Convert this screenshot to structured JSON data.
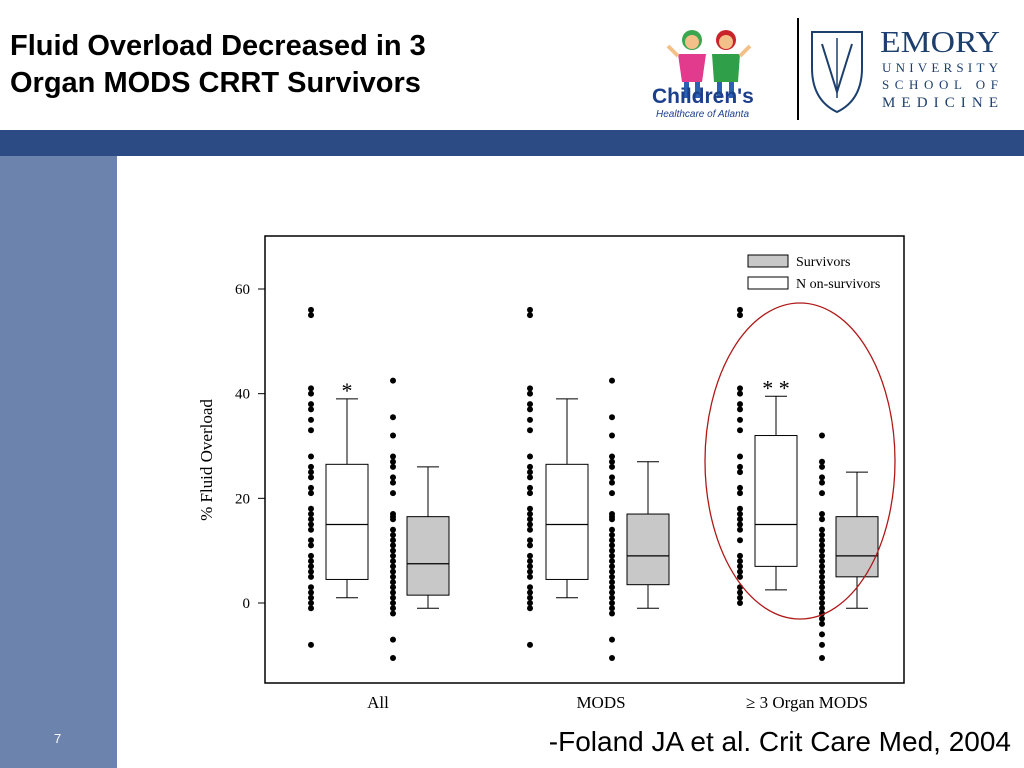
{
  "header": {
    "title_line1": "Fluid Overload Decreased in 3",
    "title_line2": "Organ MODS CRRT Survivors"
  },
  "logos": {
    "childrens_name": "Children's",
    "childrens_sub": "Healthcare of Atlanta",
    "emory_word": "EMORY",
    "emory_line2": "UNIVERSITY",
    "emory_line3": "SCHOOL OF",
    "emory_line4": "MEDICINE"
  },
  "footer": {
    "page_number": "7",
    "citation": "-Foland JA et al.  Crit Care Med, 2004"
  },
  "colors": {
    "band": "#2c4a84",
    "sidebar": "#6b83ad",
    "survivors_fill": "#c8c8c8",
    "nonsurvivors_fill": "#ffffff",
    "highlight_ellipse": "#b01818"
  },
  "chart_data": {
    "type": "box",
    "ylabel": "% Fluid Overload",
    "ylim": [
      -15,
      67
    ],
    "yticks": [
      0,
      20,
      40,
      60
    ],
    "groups": [
      "All",
      "MODS",
      "≥ 3 Organ MODS"
    ],
    "legend": {
      "placement": "top-right",
      "entries": [
        {
          "name": "Survivors",
          "fill": "#c8c8c8"
        },
        {
          "name": "N on-survivors",
          "fill": "#ffffff"
        }
      ]
    },
    "boxes": [
      {
        "group": "All",
        "series": "Non-survivors",
        "min": 1,
        "q1": 4.5,
        "median": 15,
        "q3": 26.5,
        "max": 39,
        "annotation": "*"
      },
      {
        "group": "All",
        "series": "Survivors",
        "min": -1,
        "q1": 1.5,
        "median": 7.5,
        "q3": 16.5,
        "max": 26
      },
      {
        "group": "MODS",
        "series": "Non-survivors",
        "min": 1,
        "q1": 4.5,
        "median": 15,
        "q3": 26.5,
        "max": 39
      },
      {
        "group": "MODS",
        "series": "Survivors",
        "min": -1,
        "q1": 3.5,
        "median": 9,
        "q3": 17,
        "max": 27
      },
      {
        "group": "≥ 3 Organ MODS",
        "series": "Non-survivors",
        "min": 2.5,
        "q1": 7,
        "median": 15,
        "q3": 32,
        "max": 39.5,
        "annotation": "* *"
      },
      {
        "group": "≥ 3 Organ MODS",
        "series": "Survivors",
        "min": -1,
        "q1": 5,
        "median": 9,
        "q3": 16.5,
        "max": 25
      }
    ],
    "points": [
      {
        "group": "All",
        "series": "Non-survivors",
        "values": [
          56,
          55,
          41,
          40,
          38,
          37,
          35,
          33,
          28,
          26,
          25,
          24,
          22,
          21,
          18,
          17,
          16,
          15,
          14,
          12,
          11,
          9,
          8,
          7,
          6,
          5,
          3,
          2,
          1,
          0,
          -1,
          -8
        ]
      },
      {
        "group": "All",
        "series": "Survivors",
        "values": [
          42.5,
          35.5,
          32,
          28,
          27,
          26,
          24,
          23,
          21,
          17,
          16.5,
          16,
          14,
          13,
          12,
          11,
          10,
          9,
          8,
          7,
          6,
          5,
          4,
          3,
          2,
          1,
          0,
          -1,
          -2,
          -7,
          -10.5
        ]
      },
      {
        "group": "MODS",
        "series": "Non-survivors",
        "values": [
          56,
          55,
          41,
          40,
          38,
          37,
          35,
          33,
          28,
          26,
          25,
          24,
          22,
          21,
          18,
          17,
          16,
          15,
          14,
          12,
          11,
          9,
          8,
          7,
          6,
          5,
          3,
          2,
          1,
          0,
          -1,
          -8
        ]
      },
      {
        "group": "MODS",
        "series": "Survivors",
        "values": [
          42.5,
          35.5,
          32,
          28,
          27,
          26,
          24,
          23,
          21,
          17,
          16.5,
          16,
          14,
          13,
          12,
          11,
          10,
          9,
          8,
          7,
          6,
          5,
          4,
          3,
          2,
          1,
          0,
          -1,
          -2,
          -7,
          -10.5
        ]
      },
      {
        "group": "≥ 3 Organ MODS",
        "series": "Non-survivors",
        "values": [
          56,
          55,
          41,
          40,
          38,
          37,
          35,
          33,
          28,
          26,
          25,
          22,
          21,
          18,
          17,
          16,
          15,
          14,
          12,
          9,
          8,
          7,
          6,
          5,
          3,
          2,
          1,
          0
        ]
      },
      {
        "group": "≥ 3 Organ MODS",
        "series": "Survivors",
        "values": [
          32,
          27,
          26,
          24,
          23,
          21,
          17,
          16,
          14,
          13,
          12,
          11,
          10,
          9,
          8,
          7,
          6,
          5,
          4,
          3,
          2,
          1,
          0,
          -1,
          -2,
          -3,
          -4,
          -6,
          -8,
          -10.5
        ]
      }
    ],
    "highlight": {
      "group": "≥ 3 Organ MODS",
      "shape": "ellipse"
    }
  }
}
